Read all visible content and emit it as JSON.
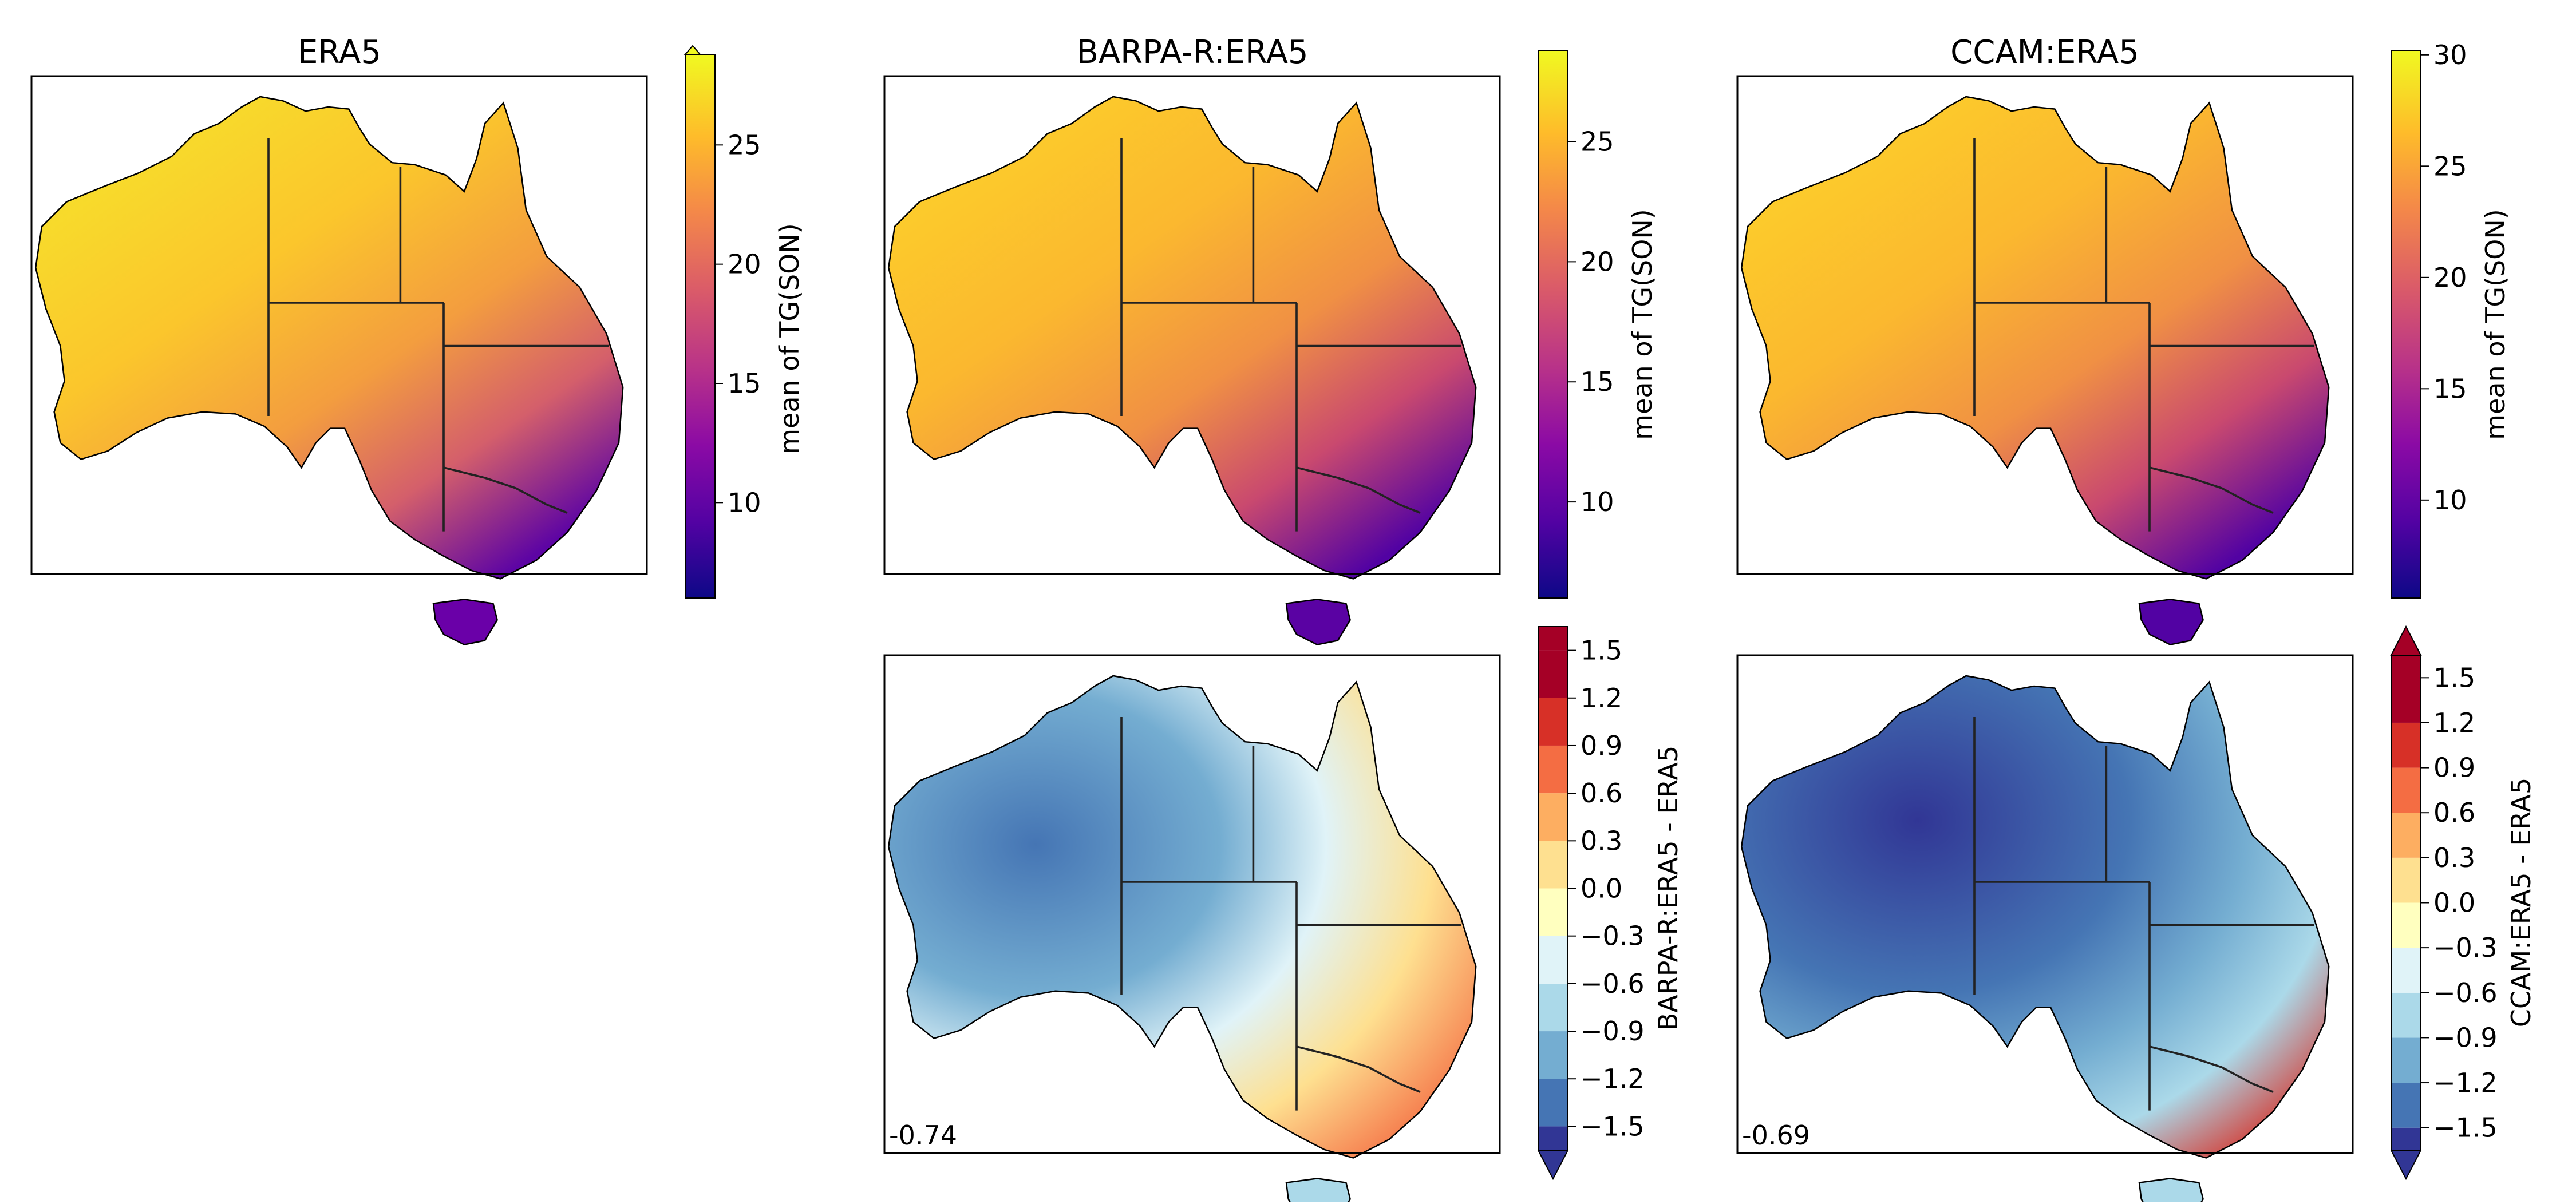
{
  "colors": {
    "plasma": [
      "#0d0887",
      "#5302a3",
      "#8b0aa5",
      "#b83289",
      "#db5c68",
      "#f48849",
      "#febc2a",
      "#f0f921"
    ],
    "diverging": [
      "#313695",
      "#4575b4",
      "#74add1",
      "#abd9e9",
      "#e0f3f8",
      "#ffffbf",
      "#fee090",
      "#fdae61",
      "#f46d43",
      "#d73027",
      "#a50026"
    ]
  },
  "chart_data": [
    {
      "type": "heatmap",
      "title": "ERA5",
      "colorbar": {
        "label": "mean of TG(SON)",
        "ticks": [
          "10",
          "15",
          "20",
          "25"
        ],
        "range": [
          6,
          28.8
        ],
        "extend": "max",
        "cmap": "plasma"
      }
    },
    {
      "type": "heatmap",
      "title": "BARPA-R:ERA5",
      "colorbar": {
        "label": "mean of TG(SON)",
        "ticks": [
          "10",
          "15",
          "20",
          "25"
        ],
        "range": [
          6,
          28.8
        ],
        "extend": "none",
        "cmap": "plasma"
      }
    },
    {
      "type": "heatmap",
      "title": "CCAM:ERA5",
      "colorbar": {
        "label": "mean of TG(SON)",
        "ticks": [
          "10",
          "15",
          "20",
          "25",
          "30"
        ],
        "range": [
          5.6,
          30.2
        ],
        "extend": "none",
        "cmap": "plasma"
      }
    },
    {
      "type": "heatmap",
      "title": "",
      "stat": "-0.74",
      "colorbar": {
        "label": "BARPA-R:ERA5 - ERA5",
        "ticks": [
          "1.5",
          "1.2",
          "0.9",
          "0.6",
          "0.3",
          "0.0",
          "−0.3",
          "−0.6",
          "−0.9",
          "−1.2",
          "−1.5"
        ],
        "range": [
          -1.65,
          1.65
        ],
        "extend": "min",
        "cmap": "diverging"
      }
    },
    {
      "type": "heatmap",
      "title": "",
      "stat": "-0.69",
      "colorbar": {
        "label": "CCAM:ERA5 - ERA5",
        "ticks": [
          "1.5",
          "1.2",
          "0.9",
          "0.6",
          "0.3",
          "0.0",
          "−0.3",
          "−0.6",
          "−0.9",
          "−1.2",
          "−1.5"
        ],
        "range": [
          -1.65,
          1.65
        ],
        "extend": "both",
        "cmap": "diverging"
      }
    }
  ]
}
